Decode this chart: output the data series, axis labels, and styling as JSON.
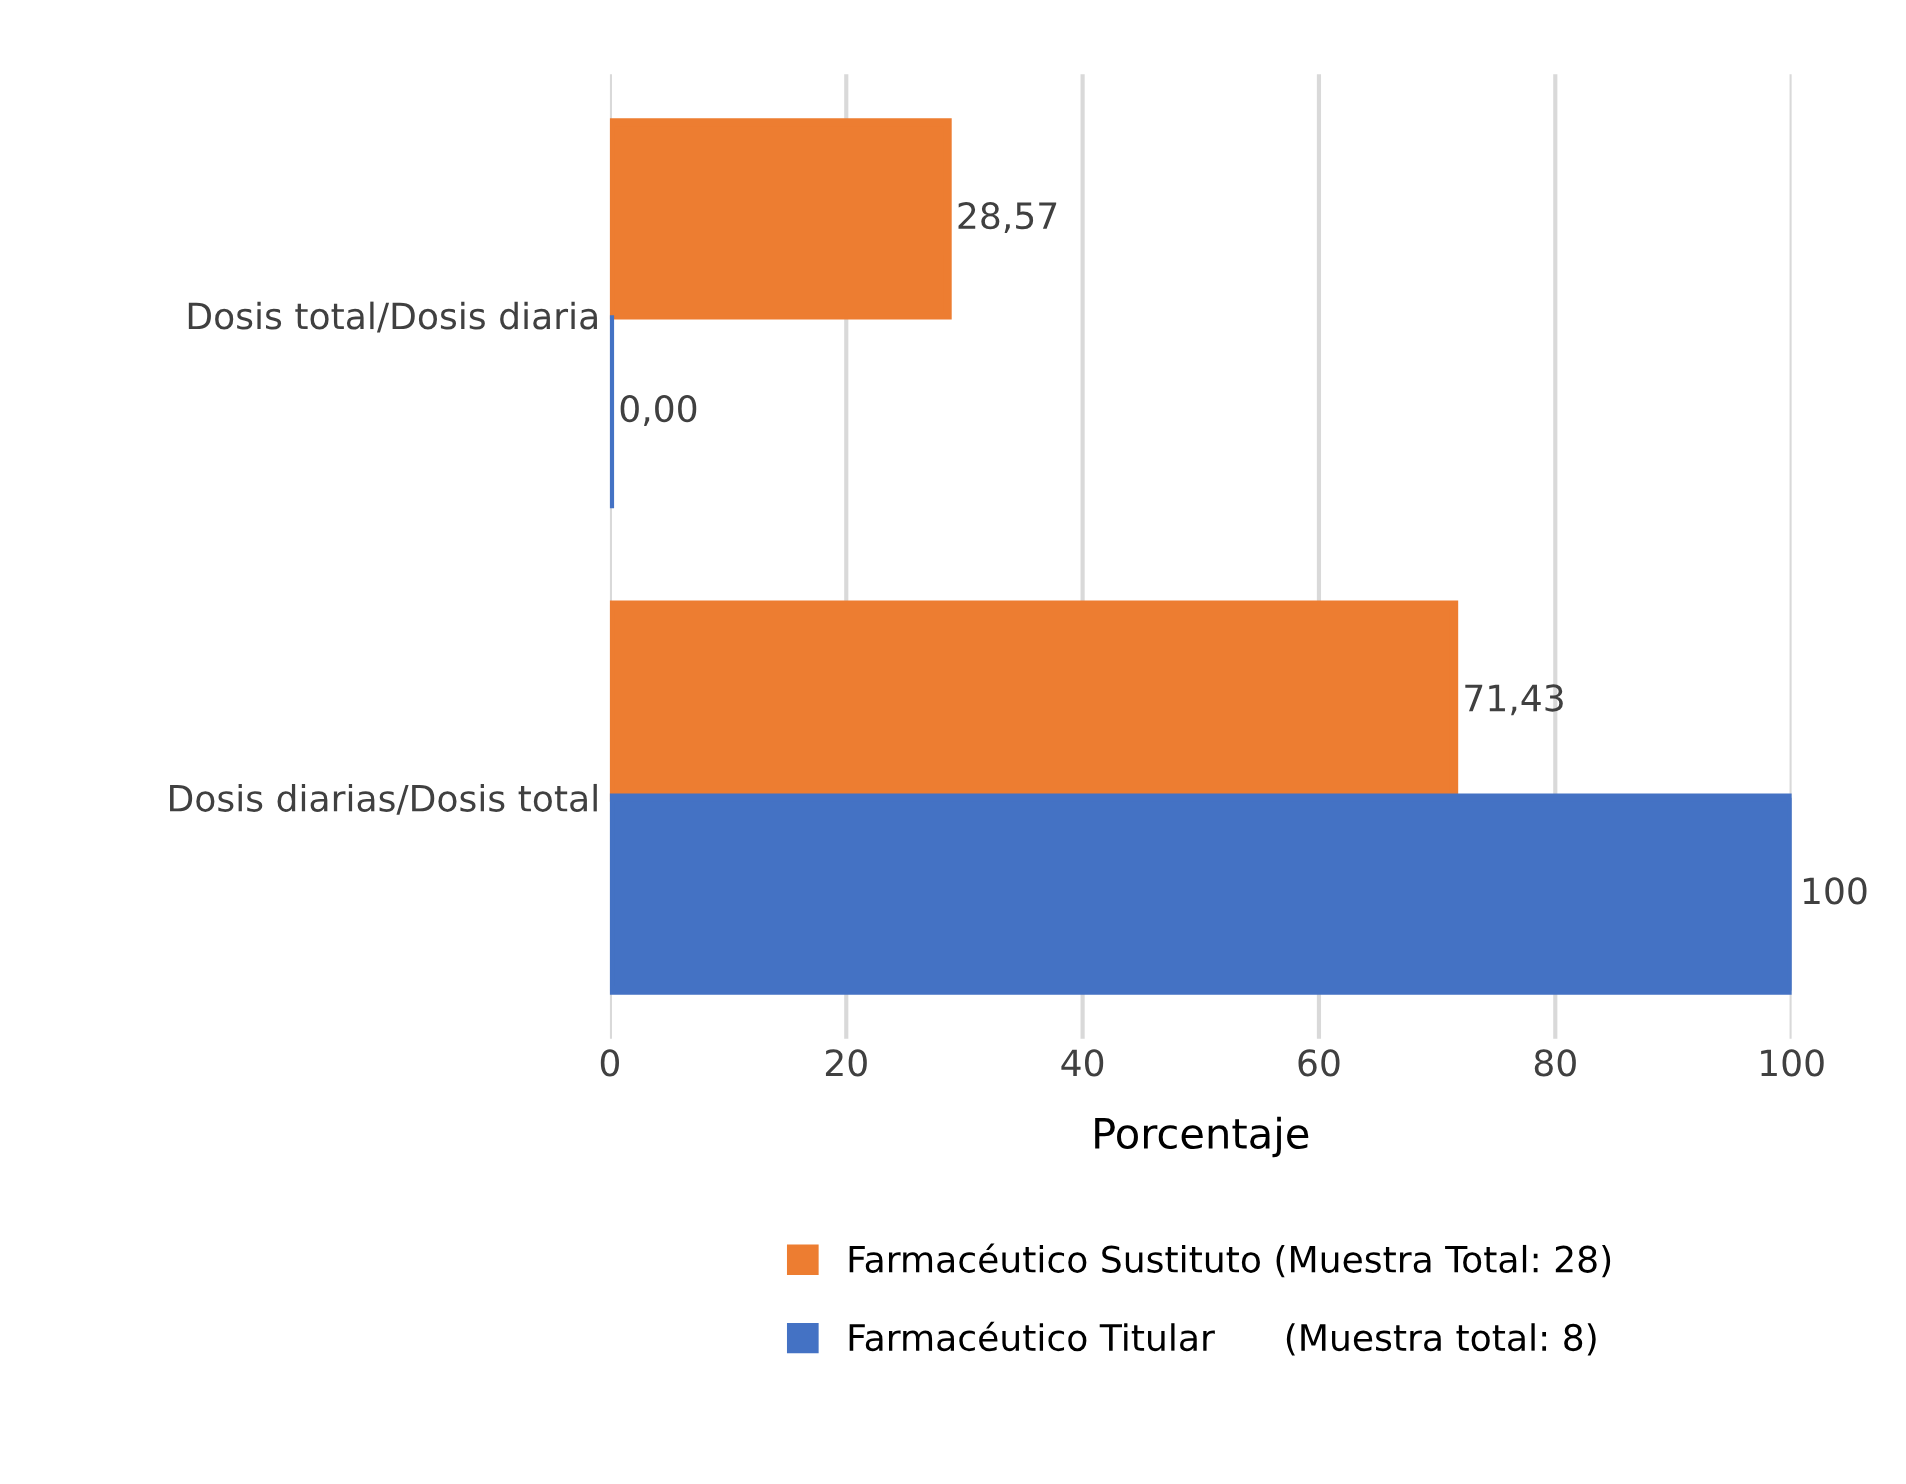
{
  "chart_data": {
    "type": "bar",
    "orientation": "horizontal",
    "xlabel": "Porcentaje",
    "categories": [
      "Dosis total/Dosis diaria",
      "Dosis diarias/Dosis total"
    ],
    "series": [
      {
        "name": "Farmacéutico Sustituto (Muestra Total: 28)",
        "color": "#ed7d31",
        "values": [
          28.57,
          71.43
        ],
        "value_labels": [
          "28,57",
          "71,43"
        ]
      },
      {
        "name": "Farmacéutico Titular      (Muestra total: 8)",
        "color": "#4472c4",
        "values": [
          0.0,
          100
        ],
        "value_labels": [
          "0,00",
          "100"
        ]
      }
    ],
    "xlim": [
      0,
      100
    ],
    "xticks": [
      0,
      20,
      40,
      60,
      80,
      100
    ],
    "grid": "x",
    "legend": "bottom"
  }
}
